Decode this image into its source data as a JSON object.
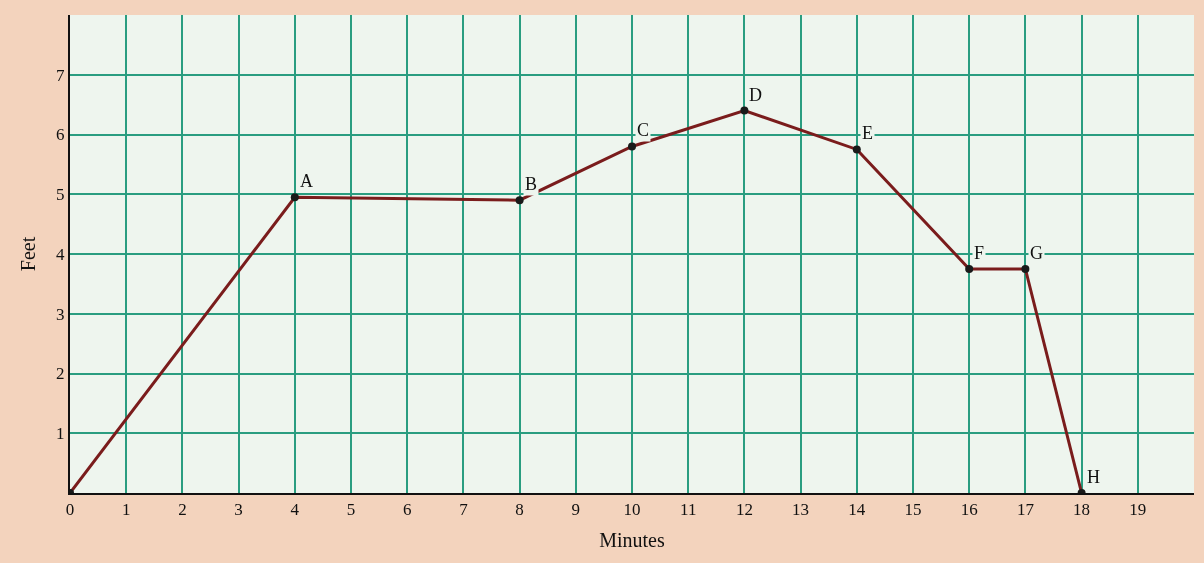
{
  "chart_data": {
    "type": "line",
    "xlabel": "Minutes",
    "ylabel": "Feet",
    "x": [
      0,
      4,
      8,
      10,
      12,
      14,
      16,
      17,
      18
    ],
    "series": [
      {
        "color": "#7a1c1c",
        "values": [
          0,
          4.95,
          4.9,
          5.8,
          6.4,
          5.75,
          3.75,
          3.75,
          0
        ]
      }
    ],
    "xlim": [
      0,
      20
    ],
    "ylim": [
      0,
      8
    ],
    "xticks": [
      0,
      1,
      2,
      3,
      4,
      5,
      6,
      7,
      8,
      9,
      10,
      11,
      12,
      13,
      14,
      15,
      16,
      17,
      18,
      19
    ],
    "yticks": [
      1,
      2,
      3,
      4,
      5,
      6,
      7
    ],
    "grid": true,
    "marker": "circle",
    "line_style": "solid",
    "annotations": [
      {
        "text": "A",
        "x": 4,
        "y": 4.95
      },
      {
        "text": "B",
        "x": 8,
        "y": 4.9
      },
      {
        "text": "C",
        "x": 10,
        "y": 5.8
      },
      {
        "text": "D",
        "x": 12,
        "y": 6.4
      },
      {
        "text": "E",
        "x": 14,
        "y": 5.75
      },
      {
        "text": "F",
        "x": 16,
        "y": 3.75
      },
      {
        "text": "G",
        "x": 17,
        "y": 3.75
      },
      {
        "text": "H",
        "x": 18,
        "y": 0
      }
    ]
  }
}
